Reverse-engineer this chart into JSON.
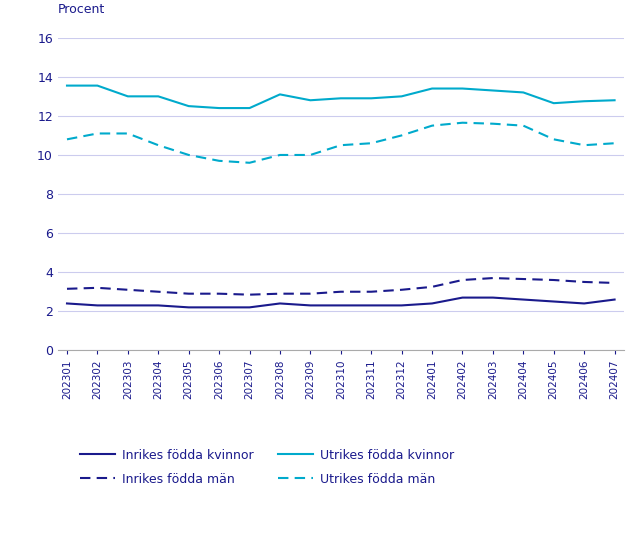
{
  "x_labels": [
    "202301",
    "202302",
    "202303",
    "202304",
    "202305",
    "202306",
    "202307",
    "202308",
    "202309",
    "202310",
    "202311",
    "202312",
    "202401",
    "202402",
    "202403",
    "202404",
    "202405",
    "202406",
    "202407"
  ],
  "inrikes_kvinnor": [
    2.4,
    2.3,
    2.3,
    2.3,
    2.2,
    2.2,
    2.2,
    2.4,
    2.3,
    2.3,
    2.3,
    2.3,
    2.4,
    2.7,
    2.7,
    2.6,
    2.5,
    2.4,
    2.6
  ],
  "inrikes_man": [
    3.15,
    3.2,
    3.1,
    3.0,
    2.9,
    2.9,
    2.85,
    2.9,
    2.9,
    3.0,
    3.0,
    3.1,
    3.25,
    3.6,
    3.7,
    3.65,
    3.6,
    3.5,
    3.45
  ],
  "utrikes_kvinnor": [
    13.55,
    13.55,
    13.0,
    13.0,
    12.5,
    12.4,
    12.4,
    13.1,
    12.8,
    12.9,
    12.9,
    13.0,
    13.4,
    13.4,
    13.3,
    13.2,
    12.65,
    12.75,
    12.8
  ],
  "utrikes_man": [
    10.8,
    11.1,
    11.1,
    10.5,
    10.0,
    9.7,
    9.6,
    10.0,
    10.0,
    10.5,
    10.6,
    11.0,
    11.5,
    11.65,
    11.6,
    11.5,
    10.8,
    10.5,
    10.6
  ],
  "ylabel": "Procent",
  "ylim": [
    0,
    16
  ],
  "yticks": [
    0,
    2,
    4,
    6,
    8,
    10,
    12,
    14,
    16
  ],
  "color_inrikes": "#1a1a8c",
  "color_utrikes": "#00aacc",
  "legend_labels": [
    "Inrikes födda kvinnor",
    "Inrikes födda män",
    "Utrikes födda kvinnor",
    "Utrikes födda män"
  ],
  "grid_color": "#ccccee",
  "background_color": "#ffffff"
}
